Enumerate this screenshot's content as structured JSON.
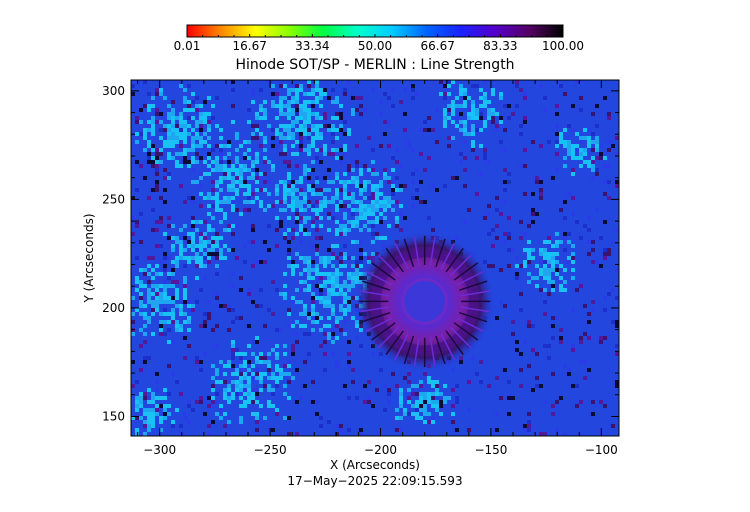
{
  "chart_data": {
    "type": "heatmap",
    "title": "Hinode SOT/SP - MERLIN : Line Strength",
    "xlabel": "X (Arcseconds)",
    "ylabel": "Y (Arcseconds)",
    "xlim": [
      -313,
      -92
    ],
    "ylim": [
      141,
      305
    ],
    "x_ticks": [
      -300,
      -250,
      -200,
      -150,
      -100
    ],
    "y_ticks": [
      150,
      200,
      250,
      300
    ],
    "x_tick_labels": [
      "−300",
      "−250",
      "−200",
      "−150",
      "−100"
    ],
    "y_tick_labels": [
      "150",
      "200",
      "250",
      "300"
    ],
    "colorbar": {
      "min": 0.01,
      "max": 100.0,
      "tick_labels": [
        "0.01",
        "16.67",
        "33.34",
        "50.00",
        "66.67",
        "83.33",
        "100.00"
      ],
      "colors": [
        "#ff0000",
        "#ff8800",
        "#ffff00",
        "#88ff00",
        "#00ff44",
        "#00ffcc",
        "#00ccff",
        "#0066ff",
        "#1a22ff",
        "#5500cc",
        "#550066",
        "#000000"
      ]
    },
    "features": [
      {
        "name": "sunspot",
        "x": -180,
        "y": 203,
        "radius": 22
      }
    ],
    "background_color": "#2346df",
    "bright_color": "#19c2f5",
    "dark_color": "#56189b"
  },
  "footer": {
    "timestamp": "17−May−2025 22:09:15.593"
  }
}
